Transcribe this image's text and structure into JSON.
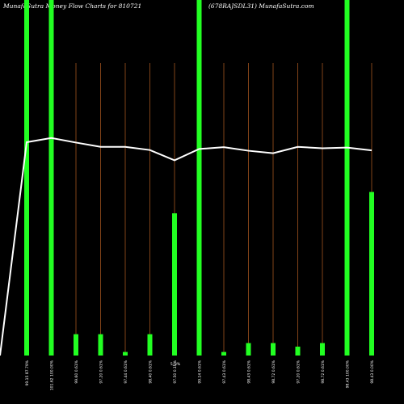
{
  "header": {
    "title_left": "MunafaSutra  Money Flow  Charts for 810721",
    "title_right": "(678RAJSDL31) MunafaSutra.com"
  },
  "colors": {
    "background": "#000000",
    "bar": "#22ff22",
    "gridline": "#a0541e",
    "line": "#ffffff",
    "text": "#ffffff"
  },
  "chart_data": {
    "type": "bar",
    "title": "MunafaSutra  Money Flow  Charts for 810721",
    "subtitle": "(678RAJSDL31) MunafaSutra.com",
    "ylim": [
      0,
      100
    ],
    "categories": [
      "99.15 87.79%",
      "101.62 100.00%",
      "99.60 0.61%",
      "97.20 0.61%",
      "97.44 0.61%",
      "98.40 0.61%",
      "97.50 0.10%",
      "99.14 0.61%",
      "97.43 0.61%",
      "98.43 0.61%",
      "98.72 0.61%",
      "97.20 0.61%",
      "98.72 0.61%",
      "98.43 100.00%",
      "98.43 0.00%"
    ],
    "extra_label": "5_3%",
    "series": [
      {
        "values": [
          100,
          100,
          6,
          6,
          1,
          6,
          40,
          100,
          1,
          3.5,
          3.5,
          2.5,
          3.5,
          100,
          46
        ]
      },
      {
        "values": [
          60,
          61.2,
          59.9,
          58.7,
          58.7,
          57.8,
          54.9,
          58.1,
          58.6,
          57.6,
          56.9,
          58.7,
          58.3,
          58.5,
          57.7
        ]
      }
    ]
  }
}
